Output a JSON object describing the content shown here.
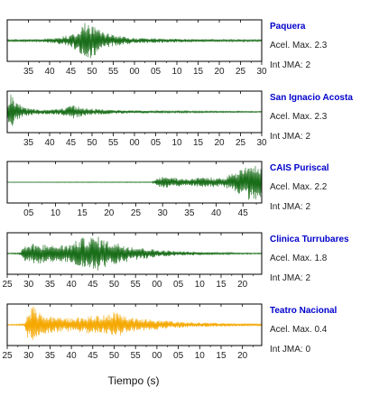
{
  "chart_data": {
    "type": "line",
    "xlabel": "Tiempo (s)",
    "accel_label": "Acel. Max.",
    "jma_label": "Int JMA:",
    "panels": [
      {
        "station": "Paquera",
        "acel_max": "2.3",
        "int_jma": "2",
        "color": "#1a6e1a",
        "name_color": "#0000cc",
        "ticks": [
          "35",
          "40",
          "45",
          "50",
          "55",
          "00",
          "05",
          "10",
          "15",
          "20",
          "25",
          "30"
        ],
        "x_range": [
          30,
          90
        ],
        "ylim": [
          -1,
          1
        ],
        "envelope": [
          [
            30,
            0.05
          ],
          [
            38,
            0.08
          ],
          [
            42,
            0.18
          ],
          [
            45,
            0.32
          ],
          [
            47,
            0.6
          ],
          [
            48.5,
            1.0
          ],
          [
            50,
            0.9
          ],
          [
            52,
            0.5
          ],
          [
            55,
            0.28
          ],
          [
            60,
            0.15
          ],
          [
            68,
            0.1
          ],
          [
            80,
            0.06
          ],
          [
            90,
            0.05
          ]
        ]
      },
      {
        "station": "San Ignacio Acosta",
        "acel_max": "2.3",
        "int_jma": "2",
        "color": "#1a6e1a",
        "name_color": "#0000cc",
        "ticks": [
          "35",
          "40",
          "45",
          "50",
          "55",
          "00",
          "05",
          "10",
          "15",
          "20",
          "25",
          "30"
        ],
        "x_range": [
          30,
          90
        ],
        "ylim": [
          -1,
          1
        ],
        "envelope": [
          [
            30,
            0.25
          ],
          [
            30.6,
            1.0
          ],
          [
            32,
            0.55
          ],
          [
            34,
            0.22
          ],
          [
            38,
            0.12
          ],
          [
            43,
            0.18
          ],
          [
            45.5,
            0.35
          ],
          [
            48,
            0.2
          ],
          [
            55,
            0.1
          ],
          [
            65,
            0.06
          ],
          [
            80,
            0.04
          ],
          [
            90,
            0.03
          ]
        ]
      },
      {
        "station": "CAIS Puriscal",
        "acel_max": "2.2",
        "int_jma": "2",
        "color": "#1a6e1a",
        "name_color": "#0000cc",
        "ticks": [
          "05",
          "10",
          "15",
          "20",
          "25",
          "30",
          "35",
          "40",
          "45"
        ],
        "x_range": [
          1,
          48.5
        ],
        "ylim": [
          -1,
          1
        ],
        "envelope": [
          [
            1,
            0.01
          ],
          [
            28,
            0.02
          ],
          [
            29.5,
            0.3
          ],
          [
            32,
            0.25
          ],
          [
            35,
            0.18
          ],
          [
            38,
            0.28
          ],
          [
            41,
            0.22
          ],
          [
            43,
            0.45
          ],
          [
            45,
            0.7
          ],
          [
            46.5,
            1.0
          ],
          [
            48,
            0.85
          ],
          [
            48.5,
            0.8
          ]
        ]
      },
      {
        "station": "Clinica Turrubares",
        "acel_max": "1.8",
        "int_jma": "2",
        "color": "#1a6e1a",
        "name_color": "#0000cc",
        "ticks": [
          "25",
          "30",
          "35",
          "40",
          "45",
          "50",
          "55",
          "00",
          "05",
          "10",
          "15",
          "20"
        ],
        "x_range": [
          25,
          84.5
        ],
        "ylim": [
          -1,
          1
        ],
        "envelope": [
          [
            25,
            0.02
          ],
          [
            28,
            0.05
          ],
          [
            29,
            0.45
          ],
          [
            32,
            0.55
          ],
          [
            35,
            0.42
          ],
          [
            38,
            0.45
          ],
          [
            40,
            0.5
          ],
          [
            42,
            0.8
          ],
          [
            44,
            0.85
          ],
          [
            46,
            0.9
          ],
          [
            48,
            0.7
          ],
          [
            51,
            0.55
          ],
          [
            55,
            0.35
          ],
          [
            60,
            0.2
          ],
          [
            65,
            0.12
          ],
          [
            70,
            0.08
          ],
          [
            80,
            0.04
          ],
          [
            84.5,
            0.03
          ]
        ]
      },
      {
        "station": "Teatro Nacional",
        "acel_max": "0.4",
        "int_jma": "0",
        "color": "#f5a800",
        "name_color": "#0000cc",
        "ticks": [
          "25",
          "30",
          "35",
          "40",
          "45",
          "50",
          "55",
          "00",
          "05",
          "10",
          "15",
          "20"
        ],
        "x_range": [
          25,
          84.5
        ],
        "ylim": [
          -1,
          1
        ],
        "envelope": [
          [
            25,
            0.02
          ],
          [
            29,
            0.05
          ],
          [
            29.8,
            0.75
          ],
          [
            31,
            1.0
          ],
          [
            33,
            0.55
          ],
          [
            36,
            0.4
          ],
          [
            40,
            0.35
          ],
          [
            44,
            0.45
          ],
          [
            48,
            0.5
          ],
          [
            50,
            0.7
          ],
          [
            53,
            0.4
          ],
          [
            58,
            0.28
          ],
          [
            64,
            0.18
          ],
          [
            70,
            0.12
          ],
          [
            78,
            0.08
          ],
          [
            84.5,
            0.06
          ]
        ]
      }
    ]
  }
}
